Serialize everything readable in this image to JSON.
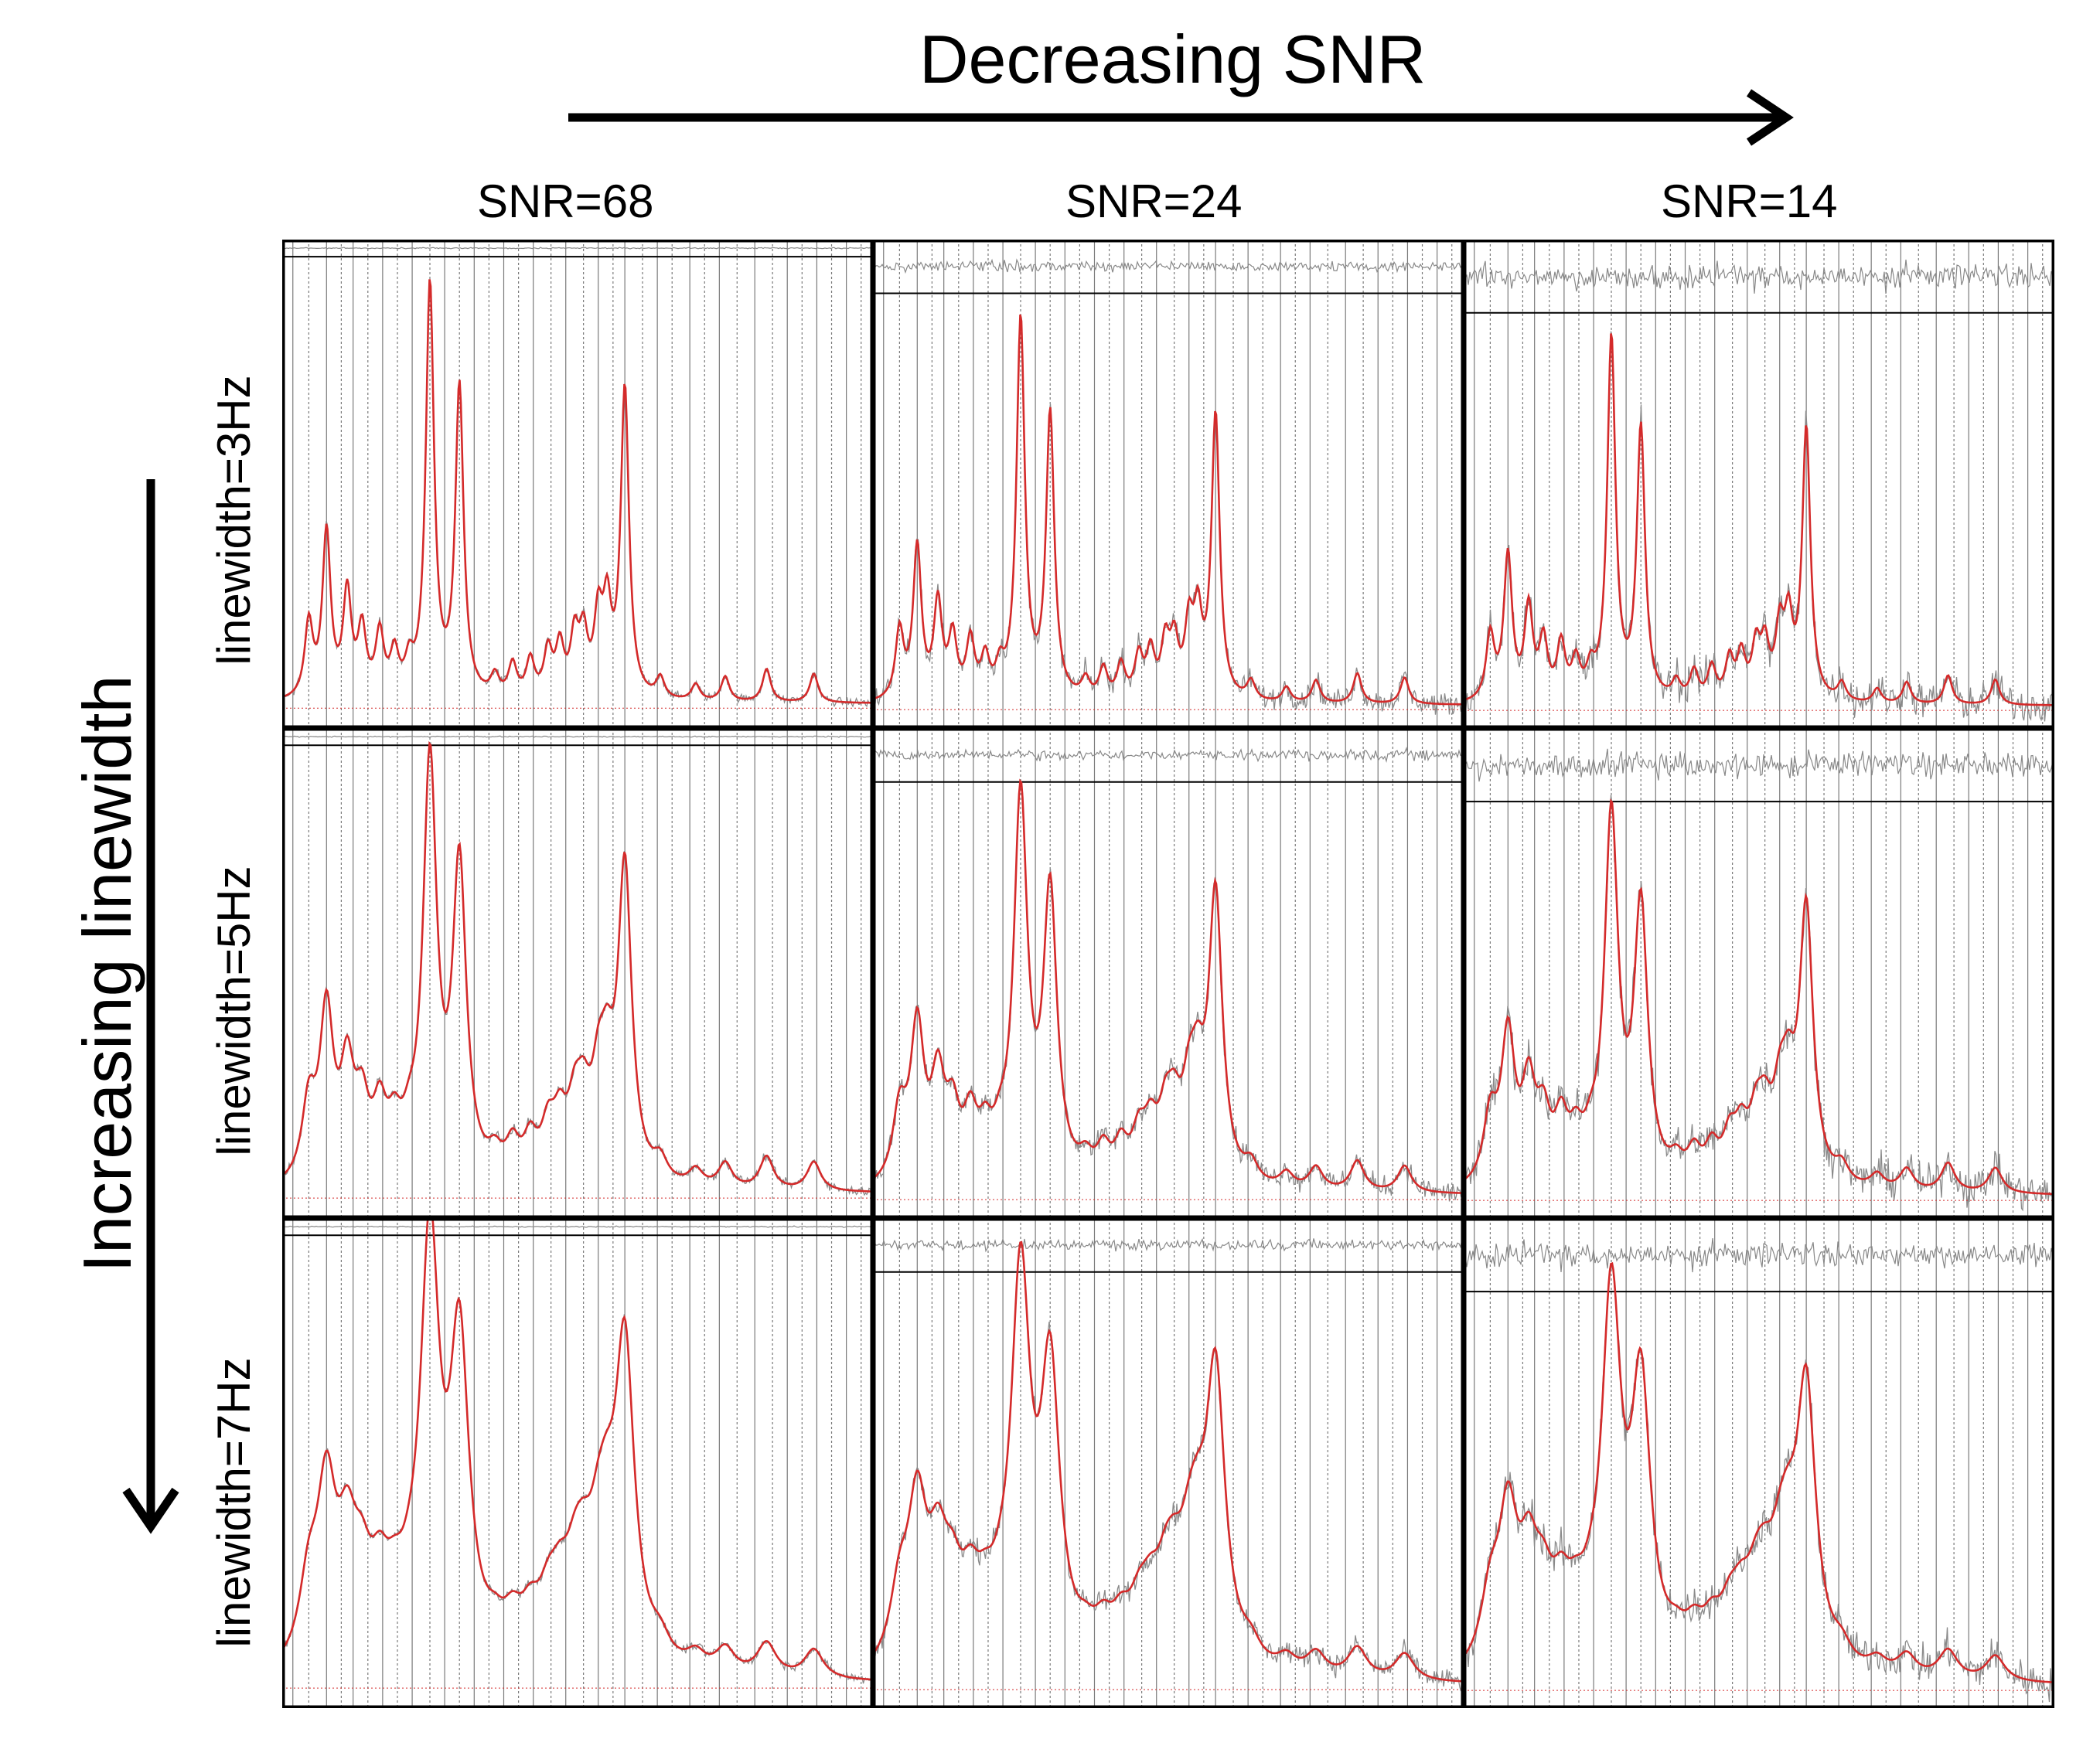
{
  "figure": {
    "top_title": "Decreasing SNR",
    "left_title": "Increasing linewidth"
  },
  "columns": [
    {
      "label": "SNR=68",
      "snr": 68
    },
    {
      "label": "SNR=24",
      "snr": 24
    },
    {
      "label": "SNR=14",
      "snr": 14
    }
  ],
  "rows": [
    {
      "label": "linewidth=3Hz",
      "linewidth_hz": 3
    },
    {
      "label": "linewidth=5Hz",
      "linewidth_hz": 5
    },
    {
      "label": "linewidth=7Hz",
      "linewidth_hz": 7
    }
  ],
  "colors": {
    "fit": "#d42a2a",
    "data": "#8a8a8a",
    "residual": "#888888",
    "gridline": "#7a7a7a",
    "frame": "#000000"
  },
  "spectrum_peaks": [
    {
      "pos": 0.045,
      "amp": 0.18
    },
    {
      "pos": 0.075,
      "amp": 0.4
    },
    {
      "pos": 0.11,
      "amp": 0.25
    },
    {
      "pos": 0.135,
      "amp": 0.16
    },
    {
      "pos": 0.165,
      "amp": 0.15
    },
    {
      "pos": 0.19,
      "amp": 0.1
    },
    {
      "pos": 0.215,
      "amp": 0.07
    },
    {
      "pos": 0.25,
      "amp": 1.0
    },
    {
      "pos": 0.3,
      "amp": 0.75
    },
    {
      "pos": 0.36,
      "amp": 0.05
    },
    {
      "pos": 0.39,
      "amp": 0.08
    },
    {
      "pos": 0.42,
      "amp": 0.09
    },
    {
      "pos": 0.45,
      "amp": 0.11
    },
    {
      "pos": 0.47,
      "amp": 0.12
    },
    {
      "pos": 0.495,
      "amp": 0.14
    },
    {
      "pos": 0.51,
      "amp": 0.14
    },
    {
      "pos": 0.535,
      "amp": 0.18
    },
    {
      "pos": 0.55,
      "amp": 0.2
    },
    {
      "pos": 0.58,
      "amp": 0.75
    },
    {
      "pos": 0.64,
      "amp": 0.05
    },
    {
      "pos": 0.7,
      "amp": 0.04
    },
    {
      "pos": 0.75,
      "amp": 0.06
    },
    {
      "pos": 0.82,
      "amp": 0.08
    },
    {
      "pos": 0.9,
      "amp": 0.07
    }
  ],
  "grid_line_positions": [
    0.018,
    0.045,
    0.075,
    0.1,
    0.12,
    0.145,
    0.17,
    0.195,
    0.22,
    0.25,
    0.275,
    0.3,
    0.325,
    0.35,
    0.375,
    0.4,
    0.425,
    0.455,
    0.48,
    0.51,
    0.535,
    0.56,
    0.58,
    0.61,
    0.635,
    0.66,
    0.69,
    0.715,
    0.74,
    0.77,
    0.8,
    0.83,
    0.855,
    0.88,
    0.905,
    0.93,
    0.955,
    0.98
  ]
}
